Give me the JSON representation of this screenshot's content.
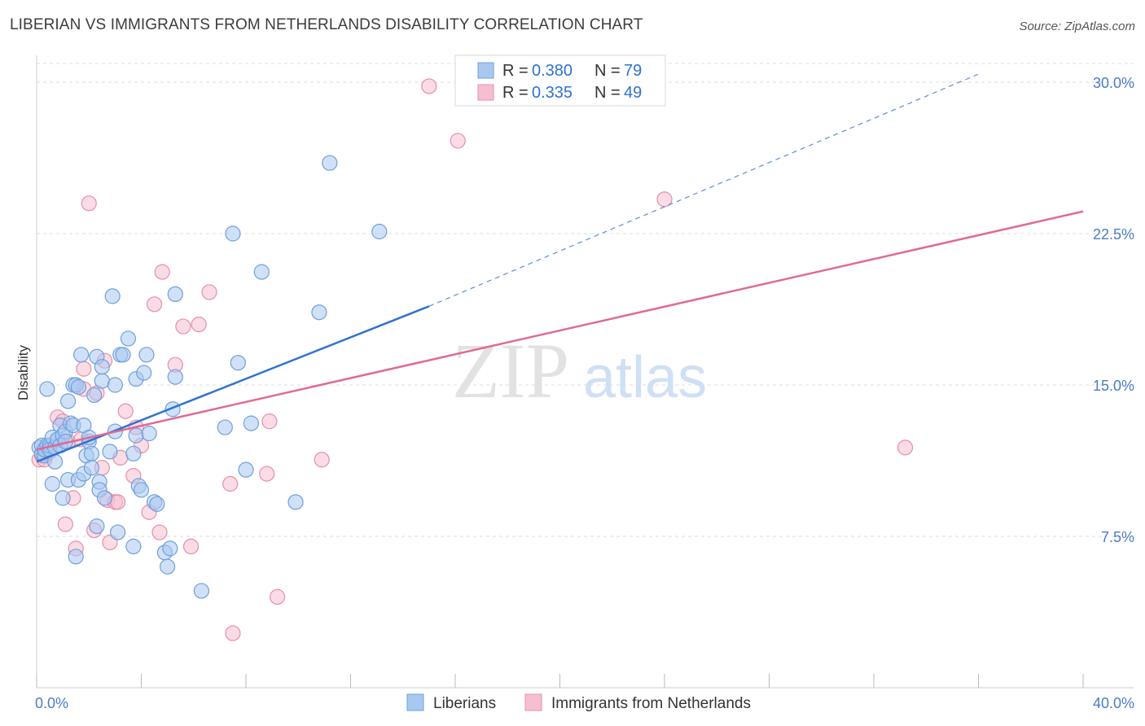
{
  "title": "LIBERIAN VS IMMIGRANTS FROM NETHERLANDS DISABILITY CORRELATION CHART",
  "source": "Source: ZipAtlas.com",
  "watermark": {
    "zip": "ZIP",
    "atlas": "atlas"
  },
  "colors": {
    "blue_fill": "#a9c8f0",
    "blue_stroke": "#6f9fdc",
    "blue_line": "#2f72d0",
    "pink_fill": "#f6bfd0",
    "pink_stroke": "#e98dab",
    "pink_line": "#e06a93",
    "grid": "#dddddd",
    "tick_text": "#4a7cc9"
  },
  "chart_data": {
    "type": "scatter",
    "xlabel": "",
    "ylabel": "Disability",
    "xlim": [
      0,
      40
    ],
    "ylim": [
      0,
      30.8
    ],
    "x_tick_labels": [
      {
        "value": 0,
        "label": "0.0%"
      },
      {
        "value": 40,
        "label": "40.0%"
      }
    ],
    "y_ticks": [
      {
        "value": 7.5,
        "label": "7.5%"
      },
      {
        "value": 15.0,
        "label": "15.0%"
      },
      {
        "value": 22.5,
        "label": "22.5%"
      },
      {
        "value": 30.0,
        "label": "30.0%"
      }
    ],
    "grid": true,
    "legend": {
      "position": "top-center",
      "entries": [
        {
          "r_label": "R =",
          "r_value": "0.380",
          "n_label": "N =",
          "n_value": "79"
        },
        {
          "r_label": "R =",
          "r_value": "0.335",
          "n_label": "N =",
          "n_value": "49"
        }
      ]
    },
    "series": [
      {
        "name": "Liberians",
        "color": "#a9c8f0",
        "trend": {
          "x0": 0,
          "y0": 11.2,
          "x1": 15.0,
          "y1": 18.9,
          "dash_to_x": 36.0,
          "dash_to_y": 30.4
        },
        "points": [
          [
            0.1,
            11.9
          ],
          [
            0.2,
            11.6
          ],
          [
            0.2,
            12.0
          ],
          [
            0.3,
            11.5
          ],
          [
            0.3,
            11.8
          ],
          [
            0.4,
            14.8
          ],
          [
            0.4,
            12.0
          ],
          [
            0.5,
            12.0
          ],
          [
            0.5,
            11.8
          ],
          [
            0.6,
            12.4
          ],
          [
            0.6,
            10.1
          ],
          [
            0.7,
            11.2
          ],
          [
            0.7,
            11.9
          ],
          [
            0.8,
            12.3
          ],
          [
            0.8,
            12.3
          ],
          [
            0.9,
            12.0
          ],
          [
            0.9,
            13.0
          ],
          [
            1.0,
            9.4
          ],
          [
            1.0,
            12.5
          ],
          [
            1.1,
            12.7
          ],
          [
            1.1,
            12.2
          ],
          [
            1.2,
            14.2
          ],
          [
            1.2,
            10.3
          ],
          [
            1.3,
            13.1
          ],
          [
            1.4,
            13.0
          ],
          [
            1.4,
            15.0
          ],
          [
            1.5,
            15.0
          ],
          [
            1.5,
            6.5
          ],
          [
            1.6,
            14.9
          ],
          [
            1.6,
            10.3
          ],
          [
            1.7,
            16.5
          ],
          [
            1.8,
            10.6
          ],
          [
            1.8,
            13.0
          ],
          [
            1.9,
            11.5
          ],
          [
            2.0,
            12.2
          ],
          [
            2.0,
            12.4
          ],
          [
            2.1,
            11.6
          ],
          [
            2.1,
            10.9
          ],
          [
            2.2,
            14.5
          ],
          [
            2.3,
            16.4
          ],
          [
            2.3,
            8.0
          ],
          [
            2.4,
            10.2
          ],
          [
            2.4,
            9.8
          ],
          [
            2.5,
            15.2
          ],
          [
            2.5,
            15.9
          ],
          [
            2.6,
            9.4
          ],
          [
            2.8,
            11.7
          ],
          [
            2.9,
            19.4
          ],
          [
            3.0,
            12.7
          ],
          [
            3.0,
            15.0
          ],
          [
            3.1,
            7.7
          ],
          [
            3.2,
            16.5
          ],
          [
            3.3,
            16.5
          ],
          [
            3.5,
            17.3
          ],
          [
            3.7,
            11.6
          ],
          [
            3.7,
            7.0
          ],
          [
            3.8,
            15.3
          ],
          [
            3.8,
            12.5
          ],
          [
            3.9,
            10.0
          ],
          [
            4.0,
            9.8
          ],
          [
            4.1,
            15.6
          ],
          [
            4.2,
            16.5
          ],
          [
            4.3,
            12.6
          ],
          [
            4.5,
            9.2
          ],
          [
            4.6,
            9.1
          ],
          [
            4.9,
            6.7
          ],
          [
            5.0,
            6.0
          ],
          [
            5.1,
            6.9
          ],
          [
            5.2,
            13.8
          ],
          [
            5.3,
            19.5
          ],
          [
            5.3,
            15.4
          ],
          [
            6.3,
            4.8
          ],
          [
            7.2,
            12.9
          ],
          [
            7.5,
            22.5
          ],
          [
            7.7,
            16.1
          ],
          [
            8.0,
            10.8
          ],
          [
            8.2,
            13.1
          ],
          [
            8.6,
            20.6
          ],
          [
            9.9,
            9.2
          ],
          [
            10.8,
            18.6
          ],
          [
            11.2,
            26.0
          ],
          [
            13.1,
            22.6
          ]
        ]
      },
      {
        "name": "Immigrants from Netherlands",
        "color": "#f6bfd0",
        "trend": {
          "x0": 0,
          "y0": 11.8,
          "x1": 40,
          "y1": 23.6
        },
        "points": [
          [
            0.1,
            11.3
          ],
          [
            0.2,
            11.5
          ],
          [
            0.3,
            11.3
          ],
          [
            0.5,
            11.7
          ],
          [
            0.8,
            13.4
          ],
          [
            1.0,
            13.2
          ],
          [
            1.1,
            8.1
          ],
          [
            1.2,
            12.2
          ],
          [
            1.4,
            9.4
          ],
          [
            1.5,
            6.9
          ],
          [
            1.7,
            12.3
          ],
          [
            1.8,
            14.8
          ],
          [
            1.8,
            15.8
          ],
          [
            2.0,
            24.0
          ],
          [
            2.2,
            7.8
          ],
          [
            2.3,
            14.6
          ],
          [
            2.5,
            10.9
          ],
          [
            2.6,
            16.2
          ],
          [
            2.7,
            9.3
          ],
          [
            2.8,
            7.2
          ],
          [
            3.0,
            9.2
          ],
          [
            3.1,
            9.2
          ],
          [
            3.2,
            11.4
          ],
          [
            3.4,
            13.7
          ],
          [
            3.7,
            10.5
          ],
          [
            3.8,
            12.9
          ],
          [
            4.0,
            12.0
          ],
          [
            4.3,
            8.7
          ],
          [
            4.5,
            19.0
          ],
          [
            4.7,
            7.7
          ],
          [
            4.8,
            20.6
          ],
          [
            5.3,
            16.0
          ],
          [
            5.6,
            17.9
          ],
          [
            5.9,
            7.0
          ],
          [
            6.2,
            18.0
          ],
          [
            6.6,
            19.6
          ],
          [
            7.4,
            10.1
          ],
          [
            7.5,
            2.7
          ],
          [
            8.8,
            10.6
          ],
          [
            8.9,
            13.2
          ],
          [
            9.2,
            4.5
          ],
          [
            10.9,
            11.3
          ],
          [
            15.0,
            29.8
          ],
          [
            16.1,
            27.1
          ],
          [
            24.0,
            24.2
          ],
          [
            33.2,
            11.9
          ]
        ]
      }
    ],
    "bottom_legend": [
      {
        "label": "Liberians",
        "color": "#a9c8f0"
      },
      {
        "label": "Immigrants from Netherlands",
        "color": "#f6bfd0"
      }
    ]
  }
}
